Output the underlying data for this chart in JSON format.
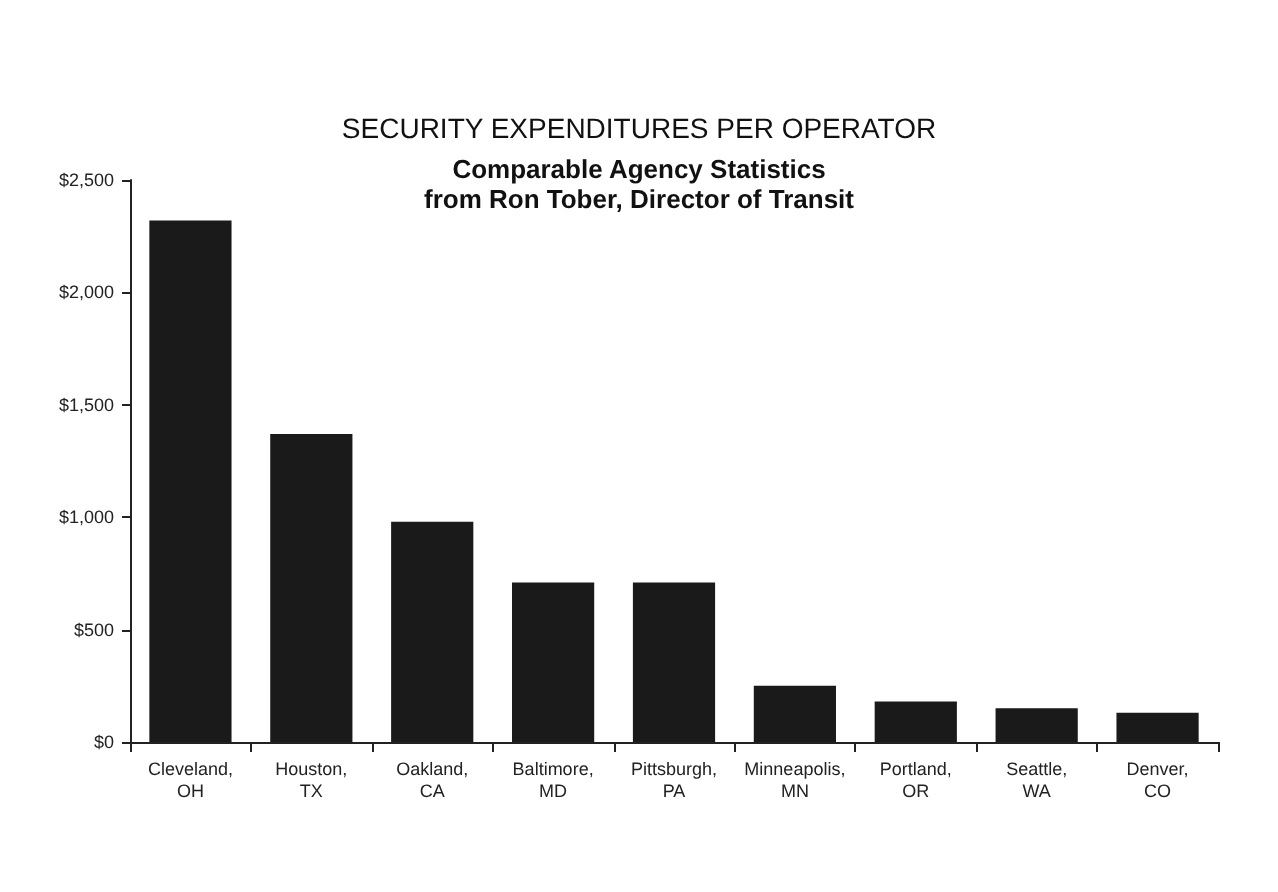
{
  "chart_data": {
    "type": "bar",
    "title": "SECURITY EXPENDITURES PER OPERATOR",
    "subtitle": "Comparable Agency Statistics\nfrom Ron Tober, Director of Transit",
    "categories": [
      "Cleveland,\nOH",
      "Houston,\nTX",
      "Oakland,\nCA",
      "Baltimore,\nMD",
      "Pittsburgh,\nPA",
      "Minneapolis,\nMN",
      "Portland,\nOR",
      "Seattle,\nWA",
      "Denver,\nCO"
    ],
    "values": [
      2320,
      1370,
      980,
      710,
      710,
      250,
      180,
      150,
      130
    ],
    "color": "#1a1a1a",
    "ylim": [
      0,
      2500
    ],
    "yticks": [
      {
        "value": 0,
        "label": "$0"
      },
      {
        "value": 500,
        "label": "$500"
      },
      {
        "value": 1000,
        "label": "$1,000"
      },
      {
        "value": 1500,
        "label": "$1,500"
      },
      {
        "value": 2000,
        "label": "$2,000"
      },
      {
        "value": 2500,
        "label": "$2,500"
      }
    ],
    "grid": false
  }
}
